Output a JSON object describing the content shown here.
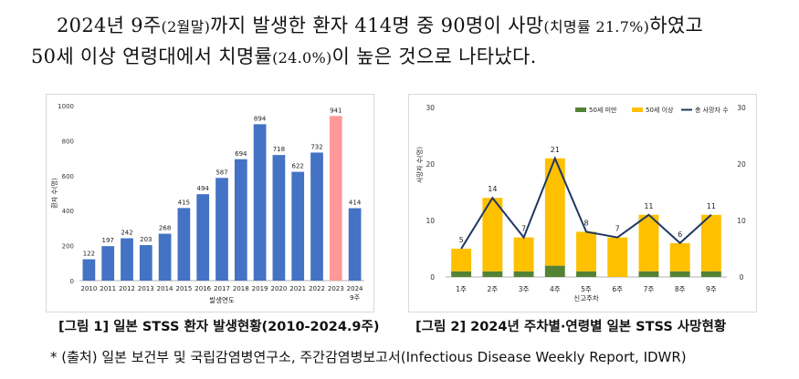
{
  "text": {
    "line1_a": "2024년 9주",
    "line1_b": "(2월말)",
    "line1_c": "까지 발생한 환자 414명 중 90명이 사망",
    "line1_d": "(치명률 21.7%)",
    "line1_e": "하였고",
    "line2_a": "50세 이상 연령대에서 치명률",
    "line2_b": "(24.0%)",
    "line2_c": "이 높은 것으로 나타났다.",
    "caption1": "[그림 1] 일본 STSS 환자 발생현황(2010-2024.9주)",
    "caption2": "[그림 2] 2024년 주차별·연령별 일본 STSS 사망현황",
    "source": "* (출처) 일본 보건부 및 국립감염병연구소, 주간감염병보고서(Infectious Disease Weekly Report, IDWR)"
  },
  "chart_data": [
    {
      "type": "bar",
      "categories": [
        "2010",
        "2011",
        "2012",
        "2013",
        "2014",
        "2015",
        "2016",
        "2017",
        "2018",
        "2019",
        "2020",
        "2021",
        "2022",
        "2023",
        "2024\n9주"
      ],
      "values": [
        122,
        197,
        242,
        203,
        268,
        415,
        494,
        587,
        694,
        894,
        718,
        622,
        732,
        941,
        414
      ],
      "highlight_index": 13,
      "colors": {
        "bar": "#4472C4",
        "highlight": "#FF9999"
      },
      "xlabel": "발생연도",
      "ylabel": "환자 수(명)",
      "ylim": [
        0,
        1000
      ],
      "yticks": [
        0,
        200,
        400,
        600,
        800,
        1000
      ]
    },
    {
      "type": "bar",
      "stacked": true,
      "categories": [
        "1주",
        "2주",
        "3주",
        "4주",
        "5주",
        "6주",
        "7주",
        "8주",
        "9주"
      ],
      "series": [
        {
          "name": "50세 미만",
          "values": [
            1,
            1,
            1,
            2,
            1,
            0,
            1,
            1,
            1
          ],
          "color": "#548235"
        },
        {
          "name": "50세 이상",
          "values": [
            4,
            13,
            6,
            19,
            7,
            7,
            10,
            5,
            10
          ],
          "color": "#FFC000"
        },
        {
          "name": "총 사망자 수",
          "type": "line",
          "values": [
            5,
            14,
            7,
            21,
            8,
            7,
            11,
            6,
            11
          ],
          "color": "#1F3864"
        }
      ],
      "xlabel": "신고주차",
      "ylabel": "사망자 수(명)",
      "ylim": [
        0,
        30
      ],
      "yticks": [
        0,
        10,
        20,
        30
      ],
      "legend": "top"
    }
  ]
}
